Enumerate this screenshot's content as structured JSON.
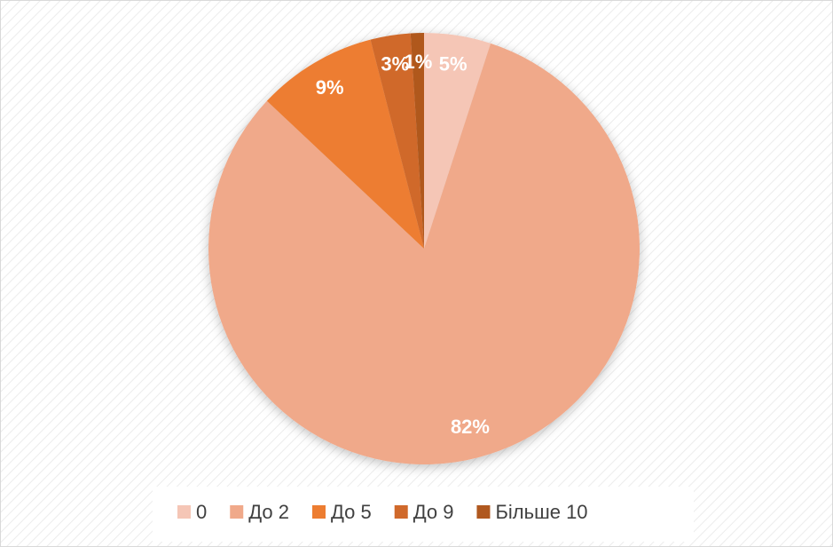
{
  "chart_data": {
    "type": "pie",
    "categories": [
      "0",
      "До 2",
      "До 5",
      "До 9",
      "Більше 10"
    ],
    "values": [
      5,
      82,
      9,
      3,
      1
    ],
    "value_labels": [
      "5%",
      "82%",
      "9%",
      "3%",
      "1%"
    ],
    "colors": [
      "#f5c6b6",
      "#f0a98a",
      "#ed7d31",
      "#d0692b",
      "#b0581f"
    ],
    "legend": "bottom"
  }
}
